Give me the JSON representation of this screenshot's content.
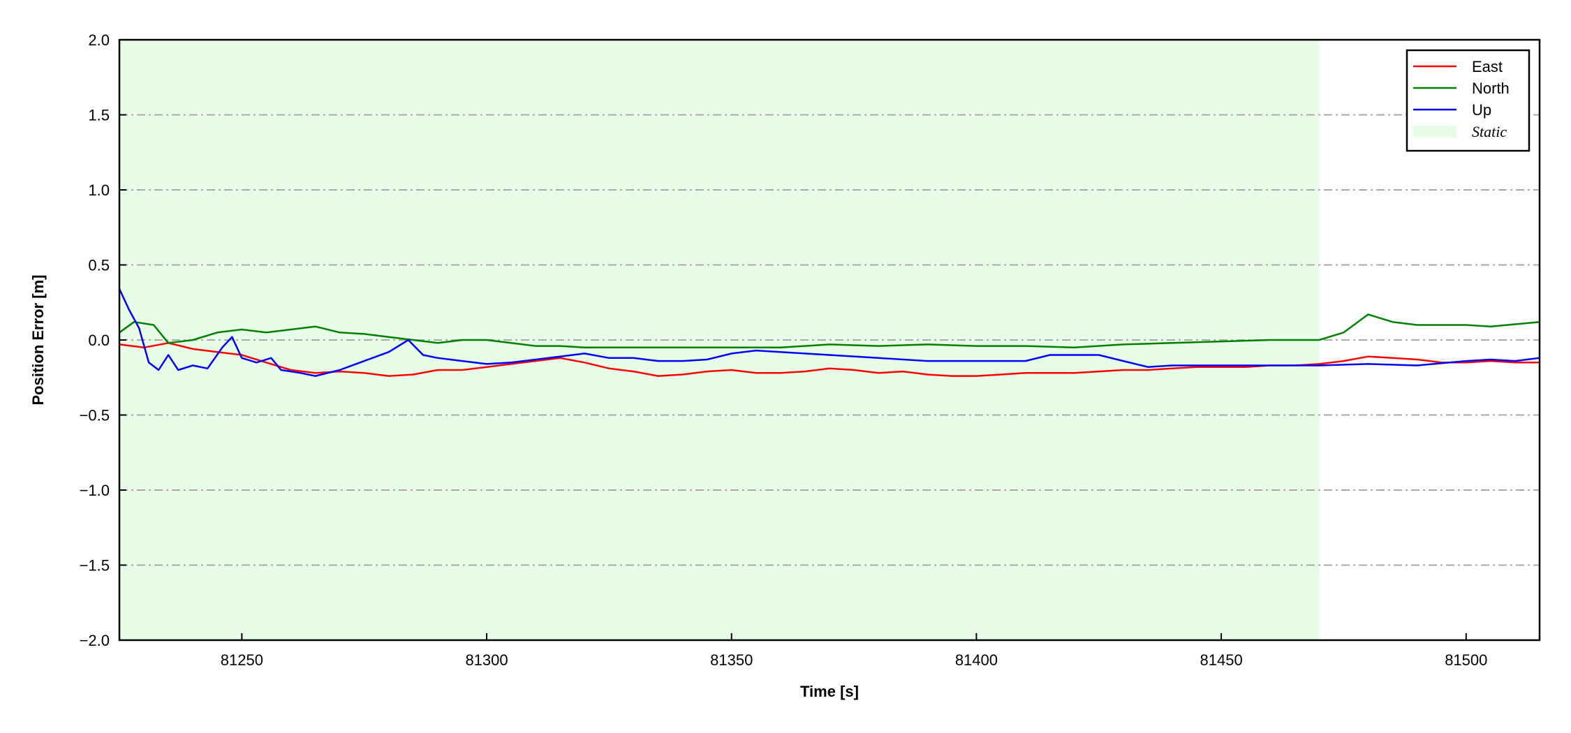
{
  "chart_data": {
    "type": "line",
    "title": "",
    "xlabel": "Time [s]",
    "ylabel": "Position Error [m]",
    "xlim": [
      81225,
      81515
    ],
    "ylim": [
      -2.0,
      2.0
    ],
    "xticks": [
      81250,
      81300,
      81350,
      81400,
      81450,
      81500
    ],
    "xtick_labels": [
      "81250",
      "81300",
      "81350",
      "81400",
      "81450",
      "81500"
    ],
    "yticks": [
      2.0,
      1.5,
      1.0,
      0.5,
      0.0,
      -0.5,
      -1.0,
      -1.5,
      -2.0
    ],
    "ytick_labels": [
      "2.0",
      "1.5",
      "1.0",
      "0.5",
      "0.0",
      "−0.5",
      "−1.0",
      "−1.5",
      "−2.0"
    ],
    "grid": "horizontal dash-dot",
    "legend_placement": "top-right",
    "static_span": {
      "label": "Static",
      "x": [
        81225,
        81470
      ],
      "color": "#e8fde8"
    },
    "series": [
      {
        "name": "East",
        "color": "#ff0000",
        "x": [
          81225,
          81230,
          81235,
          81240,
          81245,
          81250,
          81255,
          81260,
          81265,
          81270,
          81275,
          81280,
          81285,
          81290,
          81295,
          81300,
          81305,
          81310,
          81315,
          81320,
          81325,
          81330,
          81335,
          81340,
          81345,
          81350,
          81355,
          81360,
          81365,
          81370,
          81375,
          81380,
          81385,
          81390,
          81395,
          81400,
          81405,
          81410,
          81415,
          81420,
          81425,
          81430,
          81435,
          81440,
          81445,
          81450,
          81455,
          81460,
          81465,
          81470,
          81475,
          81480,
          81485,
          81490,
          81495,
          81500,
          81505,
          81510,
          81515
        ],
        "y": [
          -0.03,
          -0.05,
          -0.02,
          -0.06,
          -0.08,
          -0.1,
          -0.15,
          -0.2,
          -0.22,
          -0.21,
          -0.22,
          -0.24,
          -0.23,
          -0.2,
          -0.2,
          -0.18,
          -0.16,
          -0.14,
          -0.12,
          -0.15,
          -0.19,
          -0.21,
          -0.24,
          -0.23,
          -0.21,
          -0.2,
          -0.22,
          -0.22,
          -0.21,
          -0.19,
          -0.2,
          -0.22,
          -0.21,
          -0.23,
          -0.24,
          -0.24,
          -0.23,
          -0.22,
          -0.22,
          -0.22,
          -0.21,
          -0.2,
          -0.2,
          -0.19,
          -0.18,
          -0.18,
          -0.18,
          -0.17,
          -0.17,
          -0.16,
          -0.14,
          -0.11,
          -0.12,
          -0.13,
          -0.15,
          -0.15,
          -0.14,
          -0.15,
          -0.15
        ]
      },
      {
        "name": "North",
        "color": "#008000",
        "x": [
          81225,
          81228,
          81232,
          81235,
          81240,
          81245,
          81250,
          81255,
          81260,
          81265,
          81270,
          81275,
          81280,
          81285,
          81290,
          81295,
          81300,
          81305,
          81310,
          81315,
          81320,
          81330,
          81340,
          81350,
          81360,
          81370,
          81380,
          81390,
          81400,
          81410,
          81420,
          81430,
          81440,
          81450,
          81460,
          81470,
          81475,
          81480,
          81485,
          81490,
          81500,
          81505,
          81515
        ],
        "y": [
          0.05,
          0.12,
          0.1,
          -0.02,
          0.0,
          0.05,
          0.07,
          0.05,
          0.07,
          0.09,
          0.05,
          0.04,
          0.02,
          0.0,
          -0.02,
          0.0,
          0.0,
          -0.02,
          -0.04,
          -0.04,
          -0.05,
          -0.05,
          -0.05,
          -0.05,
          -0.05,
          -0.03,
          -0.04,
          -0.03,
          -0.04,
          -0.04,
          -0.05,
          -0.03,
          -0.02,
          -0.01,
          0.0,
          0.0,
          0.05,
          0.17,
          0.12,
          0.1,
          0.1,
          0.09,
          0.12
        ]
      },
      {
        "name": "Up",
        "color": "#0000ff",
        "x": [
          81225,
          81227,
          81229,
          81231,
          81233,
          81235,
          81237,
          81240,
          81243,
          81246,
          81248,
          81250,
          81253,
          81256,
          81258,
          81262,
          81265,
          81270,
          81275,
          81280,
          81284,
          81287,
          81290,
          81295,
          81300,
          81305,
          81310,
          81315,
          81320,
          81325,
          81330,
          81335,
          81340,
          81345,
          81350,
          81355,
          81360,
          81365,
          81370,
          81380,
          81390,
          81400,
          81410,
          81415,
          81420,
          81425,
          81430,
          81435,
          81440,
          81450,
          81460,
          81470,
          81480,
          81490,
          81500,
          81505,
          81510,
          81515
        ],
        "y": [
          0.34,
          0.2,
          0.08,
          -0.15,
          -0.2,
          -0.1,
          -0.2,
          -0.17,
          -0.19,
          -0.05,
          0.02,
          -0.12,
          -0.15,
          -0.12,
          -0.2,
          -0.22,
          -0.24,
          -0.2,
          -0.14,
          -0.08,
          0.0,
          -0.1,
          -0.12,
          -0.14,
          -0.16,
          -0.15,
          -0.13,
          -0.11,
          -0.09,
          -0.12,
          -0.12,
          -0.14,
          -0.14,
          -0.13,
          -0.09,
          -0.07,
          -0.08,
          -0.09,
          -0.1,
          -0.12,
          -0.14,
          -0.14,
          -0.14,
          -0.1,
          -0.1,
          -0.1,
          -0.14,
          -0.18,
          -0.17,
          -0.17,
          -0.17,
          -0.17,
          -0.16,
          -0.17,
          -0.14,
          -0.13,
          -0.14,
          -0.12
        ]
      }
    ]
  }
}
